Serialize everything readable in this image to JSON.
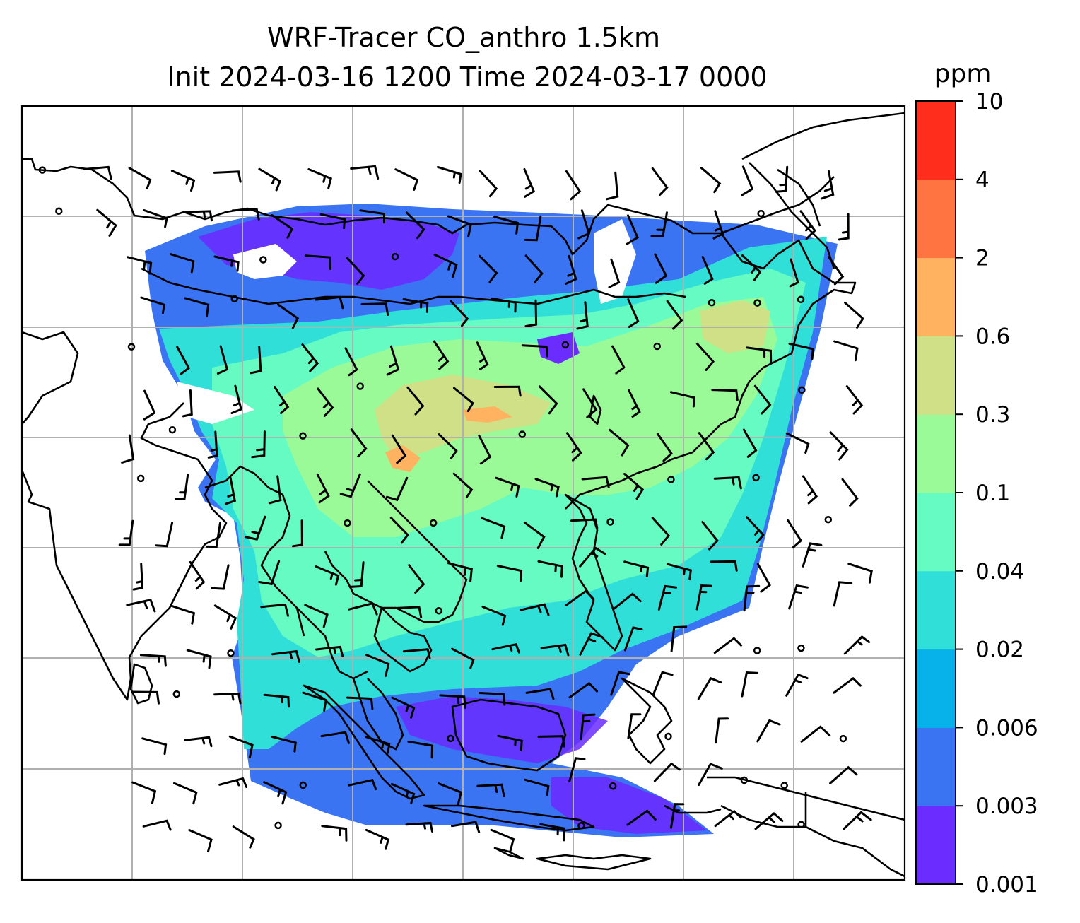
{
  "title": {
    "line1": "WRF-Tracer CO_anthro 1.5km",
    "line2": "Init 2024-03-16 1200 Time 2024-03-17 0000"
  },
  "colorbar": {
    "unit": "ppm",
    "levels": [
      "0.001",
      "0.003",
      "0.006",
      "0.02",
      "0.04",
      "0.1",
      "0.3",
      "0.6",
      "2",
      "4",
      "10"
    ],
    "colors": [
      "#6a2cff",
      "#3a74f2",
      "#07b1ea",
      "#2fdfd8",
      "#66fbc2",
      "#9bfa98",
      "#cfe087",
      "#ffb361",
      "#ff7440",
      "#ff2d1c"
    ]
  },
  "map": {
    "field": "CO_anthro",
    "gridlines": true,
    "coastline_color": "#000000",
    "grid_color": "#b0b0b0",
    "wind_barbs": true
  }
}
